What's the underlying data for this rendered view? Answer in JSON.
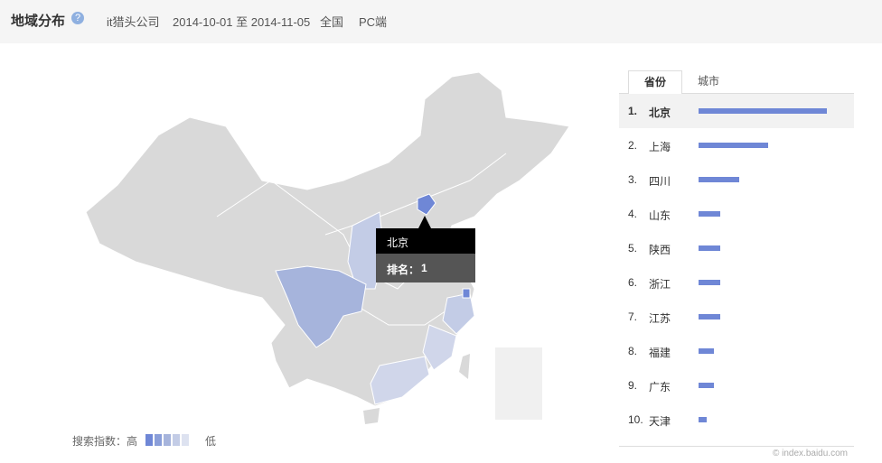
{
  "header": {
    "title": "地域分布",
    "keyword": "it猎头公司",
    "date_range": "2014-10-01 至 2014-11-05",
    "region": "全国",
    "platform": "PC端"
  },
  "tabs": [
    "省份",
    "城市"
  ],
  "ranking": [
    {
      "rank": "1.",
      "name": "北京",
      "value": 100
    },
    {
      "rank": "2.",
      "name": "上海",
      "value": 54
    },
    {
      "rank": "3.",
      "name": "四川",
      "value": 32
    },
    {
      "rank": "4.",
      "name": "山东",
      "value": 17
    },
    {
      "rank": "5.",
      "name": "陕西",
      "value": 17
    },
    {
      "rank": "6.",
      "name": "浙江",
      "value": 17
    },
    {
      "rank": "7.",
      "name": "江苏",
      "value": 17
    },
    {
      "rank": "8.",
      "name": "福建",
      "value": 12
    },
    {
      "rank": "9.",
      "name": "广东",
      "value": 12
    },
    {
      "rank": "10.",
      "name": "天津",
      "value": 6
    }
  ],
  "tooltip": {
    "name": "北京",
    "rank_label": "排名：",
    "rank": "1"
  },
  "legend": {
    "label": "搜索指数：高",
    "low": "低"
  },
  "watermark": "© index.baidu.com"
}
